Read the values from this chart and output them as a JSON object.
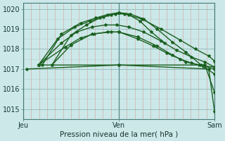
{
  "title": "Pression niveau de la mer( hPa )",
  "background_color": "#cce8e8",
  "line_color": "#1a6020",
  "ylim": [
    1014.5,
    1020.3
  ],
  "yticks": [
    1015,
    1016,
    1017,
    1018,
    1019,
    1020
  ],
  "xtick_labels": [
    "Jeu",
    "Ven",
    "Sam"
  ],
  "xtick_positions": [
    0,
    0.5,
    1.0
  ],
  "vline_positions": [
    0.0,
    0.5,
    1.0
  ],
  "xlim": [
    0.0,
    1.0
  ],
  "minor_grid_color_v": "#e8b0b0",
  "minor_grid_color_h": "#b0d4d4",
  "major_grid_color": "#90b8b8",
  "lines": [
    {
      "name": "flat_then_drop_long",
      "x": [
        0.02,
        0.5,
        0.97,
        1.0
      ],
      "y": [
        1017.0,
        1017.2,
        1017.0,
        1014.9
      ],
      "lw": 1.0
    },
    {
      "name": "flat_then_drop_medium",
      "x": [
        0.08,
        0.5,
        0.95,
        1.0
      ],
      "y": [
        1017.2,
        1017.2,
        1017.2,
        1015.85
      ],
      "lw": 1.0
    },
    {
      "name": "rise_peak_drop_a",
      "x": [
        0.08,
        0.22,
        0.3,
        0.37,
        0.44,
        0.5,
        0.6,
        0.7,
        0.78,
        0.85,
        0.92,
        1.0
      ],
      "y": [
        1017.2,
        1018.1,
        1018.55,
        1018.75,
        1018.85,
        1018.85,
        1018.6,
        1018.15,
        1017.7,
        1017.35,
        1017.2,
        1017.0
      ],
      "lw": 1.0
    },
    {
      "name": "rise_peak_drop_b",
      "x": [
        0.08,
        0.2,
        0.28,
        0.36,
        0.43,
        0.49,
        0.55,
        0.63,
        0.72,
        0.8,
        0.88,
        0.95,
        1.0
      ],
      "y": [
        1017.2,
        1018.3,
        1018.85,
        1019.1,
        1019.2,
        1019.2,
        1019.1,
        1018.85,
        1018.4,
        1017.95,
        1017.6,
        1017.35,
        1017.1
      ],
      "lw": 1.0
    },
    {
      "name": "rise_high_peak_drop",
      "x": [
        0.08,
        0.18,
        0.27,
        0.35,
        0.42,
        0.48,
        0.53,
        0.62,
        0.72,
        0.82,
        0.9,
        0.97,
        1.0
      ],
      "y": [
        1017.2,
        1018.5,
        1019.1,
        1019.4,
        1019.6,
        1019.75,
        1019.75,
        1019.5,
        1019.0,
        1018.45,
        1018.0,
        1017.65,
        1017.4
      ],
      "lw": 1.0
    },
    {
      "name": "highest_peak",
      "x": [
        0.1,
        0.2,
        0.3,
        0.38,
        0.44,
        0.5,
        0.56,
        0.63,
        0.7,
        0.78,
        0.85,
        0.93,
        1.0
      ],
      "y": [
        1017.2,
        1018.75,
        1019.3,
        1019.55,
        1019.72,
        1019.82,
        1019.75,
        1019.5,
        1019.0,
        1018.35,
        1017.85,
        1017.2,
        1016.75
      ],
      "lw": 1.0
    },
    {
      "name": "big_peak",
      "x": [
        0.15,
        0.25,
        0.33,
        0.4,
        0.46,
        0.5,
        0.55,
        0.61,
        0.67,
        0.74
      ],
      "y": [
        1017.2,
        1018.7,
        1019.2,
        1019.55,
        1019.72,
        1019.8,
        1019.72,
        1019.4,
        1018.85,
        1018.3
      ],
      "lw": 1.0
    },
    {
      "name": "medium_peak_humped",
      "x": [
        0.15,
        0.25,
        0.36,
        0.46,
        0.5,
        0.6,
        0.68,
        0.75,
        0.82,
        0.88,
        0.94,
        1.0
      ],
      "y": [
        1017.2,
        1018.2,
        1018.75,
        1018.85,
        1018.85,
        1018.5,
        1018.15,
        1017.8,
        1017.5,
        1017.3,
        1017.15,
        1017.1
      ],
      "lw": 1.0
    }
  ],
  "marker_size": 3.0,
  "marker_style": "*"
}
